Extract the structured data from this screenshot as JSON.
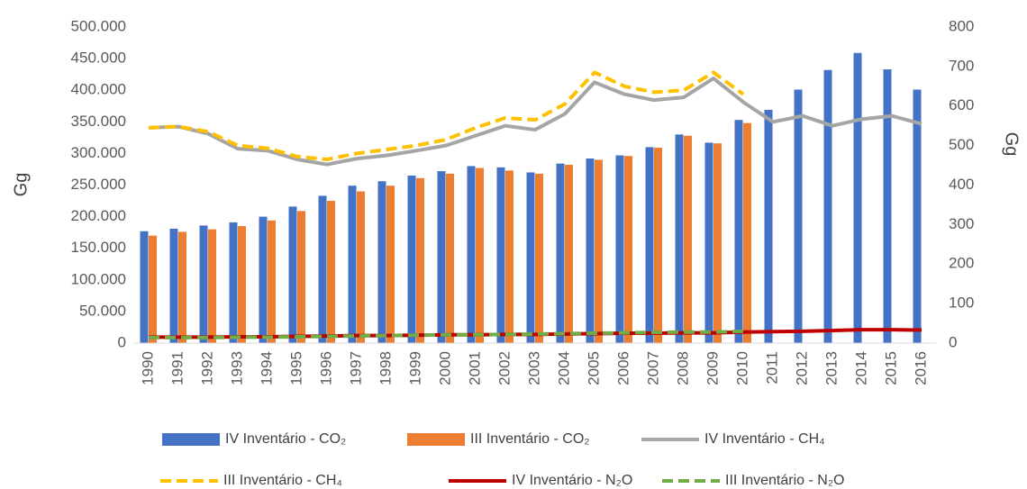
{
  "chart_data": {
    "type": "bar",
    "y_label": "Gg",
    "y2_label": "Gg",
    "categories": [
      "1990",
      "1991",
      "1992",
      "1993",
      "1994",
      "1995",
      "1996",
      "1997",
      "1998",
      "1999",
      "2000",
      "2001",
      "2002",
      "2003",
      "2004",
      "2005",
      "2006",
      "2007",
      "2008",
      "2009",
      "2010",
      "2011",
      "2012",
      "2013",
      "2014",
      "2015",
      "2016"
    ],
    "ylim": [
      0,
      500000
    ],
    "yticks": [
      0,
      {
        "value": 50000,
        "label": "50.000"
      },
      {
        "value": 100000,
        "label": "100.000"
      },
      {
        "value": 150000,
        "label": "150.000"
      },
      {
        "value": 200000,
        "label": "200.000"
      },
      {
        "value": 250000,
        "label": "250.000"
      },
      {
        "value": 300000,
        "label": "300.000"
      },
      {
        "value": 350000,
        "label": "350.000"
      },
      {
        "value": 400000,
        "label": "400.000"
      },
      {
        "value": 450000,
        "label": "450.000"
      },
      {
        "value": 500000,
        "label": "500.000"
      }
    ],
    "y2lim": [
      0,
      800
    ],
    "y2ticks": [
      0,
      100,
      200,
      300,
      400,
      500,
      600,
      700,
      800
    ],
    "grid": false,
    "legend": "bottom",
    "series": [
      {
        "name": "IV Inventário - CO₂",
        "type": "bar",
        "color": "#4472c4",
        "values": [
          177000,
          181000,
          186000,
          191000,
          200000,
          216000,
          233000,
          249000,
          256000,
          265000,
          272000,
          280000,
          278000,
          270000,
          284000,
          292000,
          297000,
          310000,
          330000,
          317000,
          353000,
          369000,
          401000,
          432000,
          459000,
          433000,
          401000
        ]
      },
      {
        "name": "III Inventário - CO₂",
        "type": "bar",
        "color": "#ed7d31",
        "values": [
          170000,
          176000,
          180000,
          185000,
          194000,
          209000,
          225000,
          240000,
          249000,
          261000,
          268000,
          277000,
          273000,
          268000,
          282000,
          290000,
          296000,
          309000,
          328000,
          316000,
          348000,
          null,
          null,
          null,
          null,
          null,
          null
        ]
      },
      {
        "name": "IV Inventário - CH₄",
        "type": "line",
        "axis": "y2",
        "color": "#a5a5a5",
        "style": "solid",
        "values": [
          545,
          548,
          530,
          492,
          487,
          465,
          452,
          467,
          475,
          487,
          500,
          525,
          550,
          540,
          580,
          660,
          630,
          615,
          622,
          670,
          610,
          560,
          575,
          550,
          567,
          575,
          555
        ]
      },
      {
        "name": "III Inventário - CH₄",
        "type": "line",
        "axis": "y2",
        "color": "#ffc000",
        "style": "dashed",
        "values": [
          545,
          548,
          535,
          500,
          493,
          472,
          465,
          480,
          490,
          500,
          515,
          545,
          570,
          565,
          605,
          685,
          650,
          635,
          640,
          685,
          630,
          null,
          null,
          null,
          null,
          null,
          null
        ]
      },
      {
        "name": "IV Inventário - N₂O",
        "type": "line",
        "axis": "y2",
        "color": "#c00000",
        "style": "solid",
        "values": [
          15,
          15,
          15,
          16,
          16,
          17,
          18,
          19,
          19,
          20,
          21,
          21,
          22,
          22,
          23,
          24,
          25,
          25,
          26,
          26,
          28,
          29,
          30,
          32,
          34,
          34,
          33
        ]
      },
      {
        "name": "III Inventário - N₂O",
        "type": "line",
        "axis": "y2",
        "color": "#70ad47",
        "style": "dashed",
        "values": [
          14,
          14,
          14,
          15,
          15,
          16,
          17,
          18,
          19,
          20,
          21,
          21,
          22,
          23,
          24,
          25,
          26,
          27,
          28,
          28,
          30,
          null,
          null,
          null,
          null,
          null,
          null
        ]
      }
    ]
  }
}
